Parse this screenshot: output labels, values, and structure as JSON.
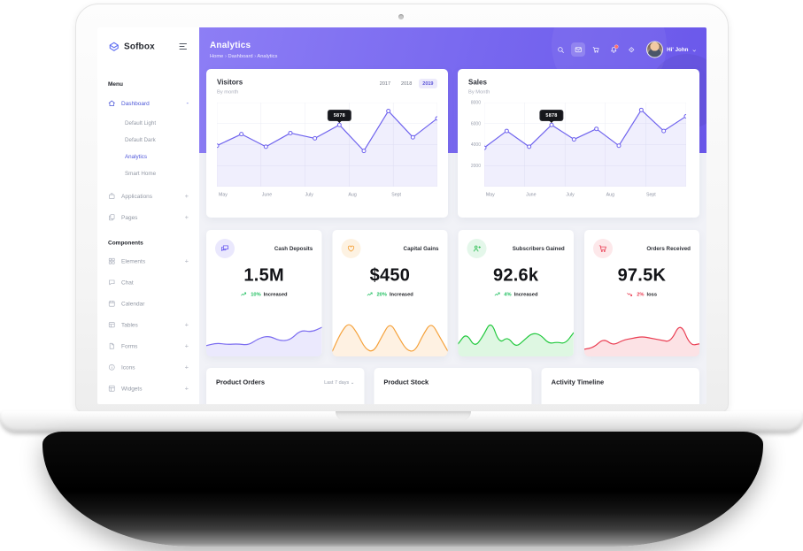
{
  "sidebar": {
    "logo_text": "Sofbox",
    "menu_label": "Menu",
    "items_top": [
      {
        "label": "Dashboard",
        "icon": "home",
        "expand": "-",
        "active": true
      }
    ],
    "dashboard_children": [
      {
        "label": "Default Light"
      },
      {
        "label": "Default Dark"
      },
      {
        "label": "Analytics",
        "active": true
      },
      {
        "label": "Smart Home"
      }
    ],
    "items_after": [
      {
        "label": "Applications",
        "icon": "bag",
        "expand": "+"
      },
      {
        "label": "Pages",
        "icon": "pages",
        "expand": "+"
      }
    ],
    "components_label": "Components",
    "component_items": [
      {
        "label": "Elements",
        "icon": "grid",
        "expand": "+"
      },
      {
        "label": "Chat",
        "icon": "chat",
        "expand": ""
      },
      {
        "label": "Calendar",
        "icon": "calendar",
        "expand": ""
      },
      {
        "label": "Tables",
        "icon": "table",
        "expand": "+"
      },
      {
        "label": "Forms",
        "icon": "file",
        "expand": "+"
      },
      {
        "label": "Icons",
        "icon": "info",
        "expand": "+"
      },
      {
        "label": "Widgets",
        "icon": "widget",
        "expand": "+"
      }
    ]
  },
  "header": {
    "title": "Analytics",
    "breadcrumb": [
      "Home",
      "Dashboard",
      "Analytics"
    ],
    "icons": [
      {
        "name": "search-icon",
        "icon": "search"
      },
      {
        "name": "mail-icon",
        "icon": "mail",
        "boxed": true
      },
      {
        "name": "cart-icon",
        "icon": "cart"
      },
      {
        "name": "bell-icon",
        "icon": "bell",
        "badge": true
      },
      {
        "name": "locate-icon",
        "icon": "locate"
      }
    ],
    "user": {
      "greeting": "Hi' John"
    }
  },
  "charts": {
    "visitors": {
      "title": "Visitors",
      "subtitle": "By month",
      "years": [
        {
          "label": "2017"
        },
        {
          "label": "2018"
        },
        {
          "label": "2019",
          "active": true
        }
      ]
    },
    "sales": {
      "title": "Sales",
      "subtitle": "By Month"
    }
  },
  "stats": [
    {
      "title": "Cash Deposits",
      "icon": "chat-double",
      "accent": "#6a5cf0",
      "tint": "#eae8fd",
      "value": "1.5M",
      "delta_pct": "10%",
      "delta_word": "Increased",
      "trend_icon": "trend-up",
      "delta_color": "#1fbf5f",
      "spark": "cash_deposits"
    },
    {
      "title": "Capital Gains",
      "icon": "heart",
      "accent": "#f5a23c",
      "tint": "#fdf2e2",
      "value": "$450",
      "delta_pct": "20%",
      "delta_word": "Increased",
      "trend_icon": "trend-up",
      "delta_color": "#1fbf5f",
      "spark": "capital_gains"
    },
    {
      "title": "Subscribers Gained",
      "icon": "user-plus",
      "accent": "#2dbd53",
      "tint": "#e4f7ea",
      "value": "92.6k",
      "delta_pct": "4%",
      "delta_word": "Increased",
      "trend_icon": "trend-up",
      "delta_color": "#1fbf5f",
      "spark": "subscribers"
    },
    {
      "title": "Orders Received",
      "icon": "cart",
      "accent": "#ea3d52",
      "tint": "#fde8ea",
      "value": "97.5K",
      "delta_pct": "2%",
      "delta_word": "loss",
      "trend_icon": "trend-down",
      "delta_color": "#ea3d52",
      "spark": "orders"
    }
  ],
  "bottom_cards": [
    {
      "title": "Product Orders",
      "filter": "Last 7 days"
    },
    {
      "title": "Product Stock"
    },
    {
      "title": "Activity Timeline"
    }
  ],
  "chart_data": [
    {
      "id": "visitors",
      "type": "line",
      "title": "Visitors",
      "subtitle": "By month",
      "x": [
        "May",
        "June",
        "July",
        "Aug",
        "Sept"
      ],
      "values": [
        3900,
        5000,
        3800,
        5100,
        4600,
        5878,
        3400,
        7200,
        4700,
        6500
      ],
      "ylim": [
        0,
        8000
      ],
      "grid": true,
      "legend": "none",
      "tooltip": {
        "index": 5,
        "label": "5878"
      },
      "color": "#6f63ee"
    },
    {
      "id": "sales",
      "type": "line",
      "title": "Sales",
      "subtitle": "By Month",
      "x": [
        "May",
        "June",
        "July",
        "Aug",
        "Sept"
      ],
      "values": [
        3700,
        5300,
        3800,
        5878,
        4500,
        5500,
        3900,
        7300,
        5300,
        6700
      ],
      "ylim": [
        0,
        8000
      ],
      "yticks": [
        8000,
        6000,
        4000,
        2000
      ],
      "grid": true,
      "legend": "none",
      "tooltip": {
        "index": 3,
        "label": "5878"
      },
      "color": "#6f63ee"
    },
    {
      "id": "cash_deposits",
      "type": "area",
      "ylim": [
        0,
        10
      ],
      "values": [
        2.5,
        3.2,
        2.8,
        3.0,
        2.6,
        4.5,
        5.2,
        3.8,
        4.0,
        6.8,
        6.2,
        7.5
      ],
      "color": "#7b6cf0"
    },
    {
      "id": "capital_gains",
      "type": "area",
      "ylim": [
        0,
        10
      ],
      "values": [
        1,
        6,
        9,
        6,
        1.5,
        0.7,
        5,
        9,
        5,
        1.2,
        0.8,
        5.5,
        9,
        5,
        1
      ],
      "color": "#f5a23c"
    },
    {
      "id": "subscribers",
      "type": "area",
      "ylim": [
        0,
        10
      ],
      "values": [
        3,
        6,
        2,
        5,
        9.5,
        3,
        5,
        2,
        4,
        6,
        5.5,
        3,
        3.5,
        3,
        6
      ],
      "color": "#22c93e"
    },
    {
      "id": "orders",
      "type": "area",
      "ylim": [
        0,
        10
      ],
      "values": [
        1.5,
        2,
        4.5,
        2.5,
        4,
        4.5,
        5,
        4.5,
        4,
        3.5,
        9,
        2.5,
        3
      ],
      "color": "#ea3d52"
    }
  ]
}
